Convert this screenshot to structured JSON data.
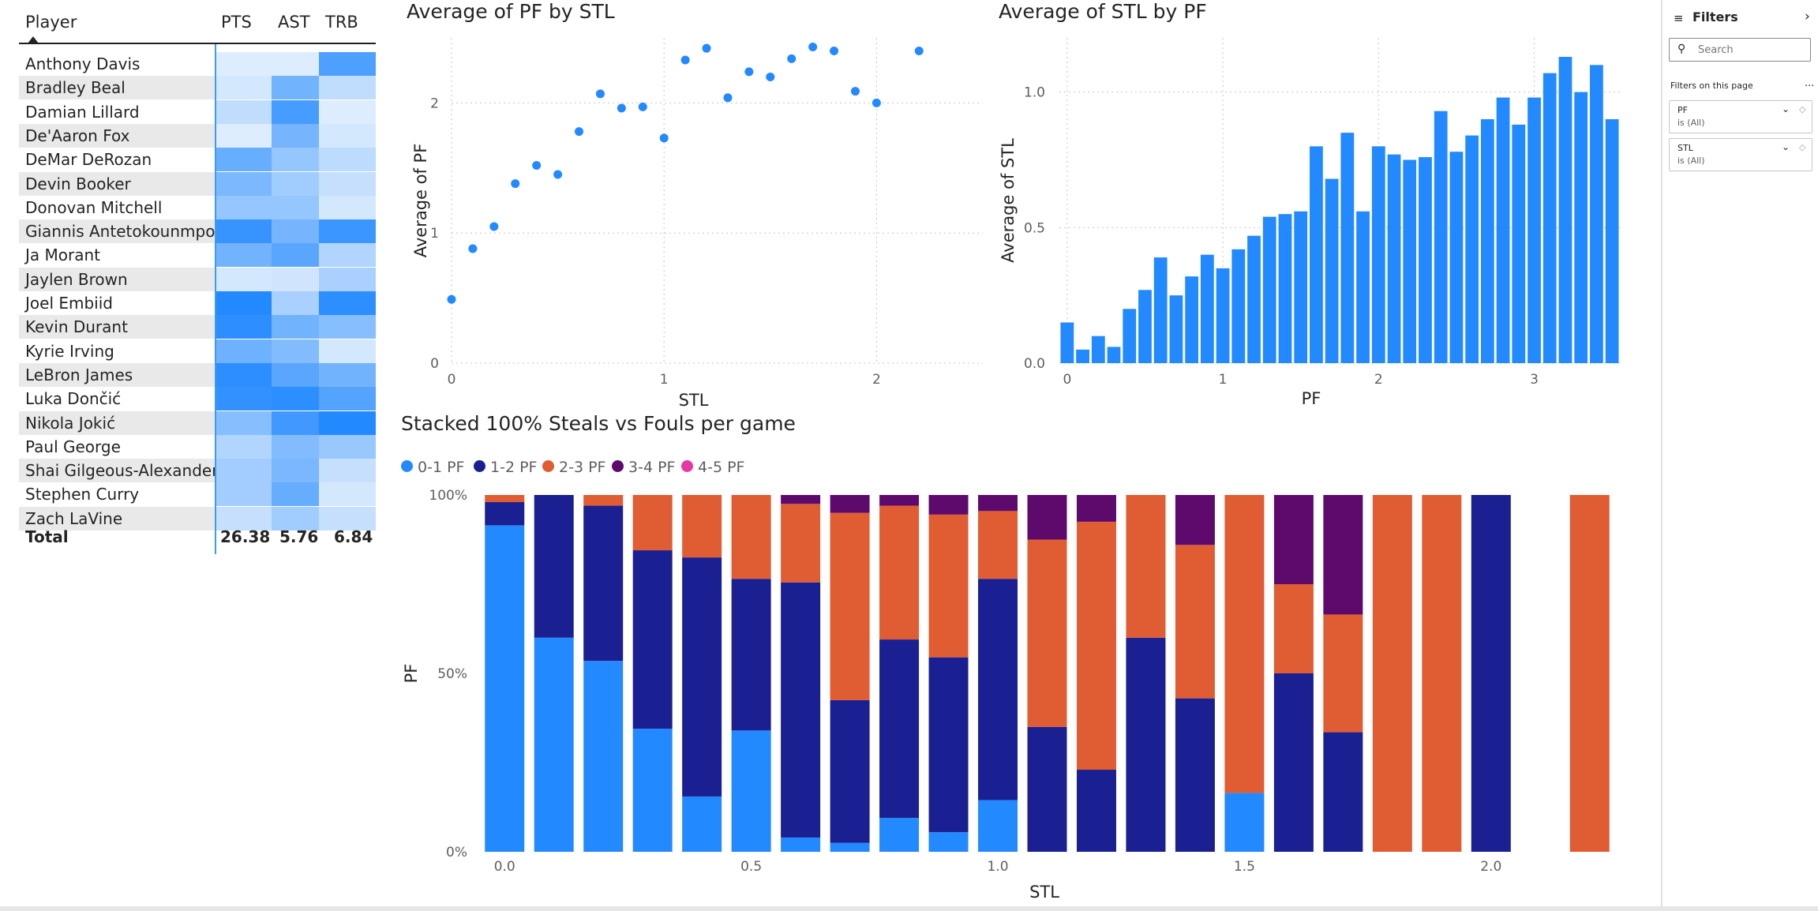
{
  "colors": {
    "accent": "#2389ff",
    "pf_0_1": "#2389ff",
    "pf_1_2": "#1a1f91",
    "pf_2_3": "#e05c33",
    "pf_3_4": "#5e0a6d",
    "pf_4_5": "#e438a7",
    "heat_max": "#2389ff",
    "heat_min": "#e8f2fd"
  },
  "table": {
    "headers": {
      "player": "Player",
      "pts": "PTS",
      "ast": "AST",
      "trb": "TRB"
    },
    "rows": [
      {
        "player": "Anthony Davis",
        "pts_level": 0.05,
        "ast_level": 0.05,
        "trb_level": 0.78
      },
      {
        "player": "Bradley Beal",
        "pts_level": 0.1,
        "ast_level": 0.6,
        "trb_level": 0.2
      },
      {
        "player": "Damian Lillard",
        "pts_level": 0.2,
        "ast_level": 0.82,
        "trb_level": 0.05
      },
      {
        "player": "De'Aaron Fox",
        "pts_level": 0.05,
        "ast_level": 0.58,
        "trb_level": 0.1
      },
      {
        "player": "DeMar DeRozan",
        "pts_level": 0.65,
        "ast_level": 0.42,
        "trb_level": 0.22
      },
      {
        "player": "Devin Booker",
        "pts_level": 0.55,
        "ast_level": 0.36,
        "trb_level": 0.18
      },
      {
        "player": "Donovan Mitchell",
        "pts_level": 0.42,
        "ast_level": 0.42,
        "trb_level": 0.1
      },
      {
        "player": "Giannis Antetokounmpo",
        "pts_level": 0.9,
        "ast_level": 0.58,
        "trb_level": 0.88
      },
      {
        "player": "Ja Morant",
        "pts_level": 0.6,
        "ast_level": 0.72,
        "trb_level": 0.28
      },
      {
        "player": "Jaylen Brown",
        "pts_level": 0.1,
        "ast_level": 0.12,
        "trb_level": 0.32
      },
      {
        "player": "Joel Embiid",
        "pts_level": 1.0,
        "ast_level": 0.32,
        "trb_level": 0.95
      },
      {
        "player": "Kevin Durant",
        "pts_level": 0.95,
        "ast_level": 0.6,
        "trb_level": 0.5
      },
      {
        "player": "Kyrie Irving",
        "pts_level": 0.62,
        "ast_level": 0.52,
        "trb_level": 0.1
      },
      {
        "player": "LeBron James",
        "pts_level": 0.95,
        "ast_level": 0.72,
        "trb_level": 0.6
      },
      {
        "player": "Luka Dončić",
        "pts_level": 0.92,
        "ast_level": 0.95,
        "trb_level": 0.75
      },
      {
        "player": "Nikola Jokić",
        "pts_level": 0.5,
        "ast_level": 0.85,
        "trb_level": 1.0
      },
      {
        "player": "Paul George",
        "pts_level": 0.28,
        "ast_level": 0.52,
        "trb_level": 0.4
      },
      {
        "player": "Shai Gilgeous-Alexander",
        "pts_level": 0.35,
        "ast_level": 0.56,
        "trb_level": 0.18
      },
      {
        "player": "Stephen Curry",
        "pts_level": 0.35,
        "ast_level": 0.66,
        "trb_level": 0.1
      },
      {
        "player": "Zach LaVine",
        "pts_level": 0.18,
        "ast_level": 0.36,
        "trb_level": 0.18
      }
    ],
    "total": {
      "label": "Total",
      "pts": "26.38",
      "ast": "5.76",
      "trb": "6.84"
    }
  },
  "filters": {
    "title": "Filters",
    "search_placeholder": "Search",
    "section": "Filters on this page",
    "more": "...",
    "collapse_glyph": "›",
    "cards": [
      {
        "name": "PF",
        "value": "is (All)"
      },
      {
        "name": "STL",
        "value": "is (All)"
      }
    ]
  },
  "chart_data": [
    {
      "type": "scatter",
      "title": "Average of PF by STL",
      "xlabel": "STL",
      "ylabel": "Average of PF",
      "xlim": [
        0,
        2.5
      ],
      "ylim": [
        0,
        2.5
      ],
      "xticks": [
        0,
        1,
        2
      ],
      "yticks": [
        0,
        1,
        2
      ],
      "points": [
        {
          "x": 0.0,
          "y": 0.49
        },
        {
          "x": 0.1,
          "y": 0.88
        },
        {
          "x": 0.2,
          "y": 1.05
        },
        {
          "x": 0.3,
          "y": 1.38
        },
        {
          "x": 0.4,
          "y": 1.52
        },
        {
          "x": 0.5,
          "y": 1.45
        },
        {
          "x": 0.6,
          "y": 1.78
        },
        {
          "x": 0.7,
          "y": 2.07
        },
        {
          "x": 0.8,
          "y": 1.96
        },
        {
          "x": 0.9,
          "y": 1.97
        },
        {
          "x": 1.0,
          "y": 1.73
        },
        {
          "x": 1.1,
          "y": 2.33
        },
        {
          "x": 1.2,
          "y": 2.42
        },
        {
          "x": 1.3,
          "y": 2.04
        },
        {
          "x": 1.4,
          "y": 2.24
        },
        {
          "x": 1.5,
          "y": 2.2
        },
        {
          "x": 1.6,
          "y": 2.34
        },
        {
          "x": 1.7,
          "y": 2.43
        },
        {
          "x": 1.8,
          "y": 2.4
        },
        {
          "x": 1.9,
          "y": 2.09
        },
        {
          "x": 2.0,
          "y": 2.0
        },
        {
          "x": 2.2,
          "y": 2.4
        }
      ]
    },
    {
      "type": "bar",
      "title": "Average of STL by PF",
      "xlabel": "PF",
      "ylabel": "Average of STL",
      "xlim": [
        -0.05,
        3.55
      ],
      "ylim": [
        0,
        1.2
      ],
      "xticks": [
        0,
        1,
        2,
        3
      ],
      "yticks": [
        0.0,
        0.5,
        1.0
      ],
      "ytick_labels": [
        "0.0",
        "0.5",
        "1.0"
      ],
      "bar_width": 0.085,
      "x": [
        0.0,
        0.1,
        0.2,
        0.3,
        0.4,
        0.5,
        0.6,
        0.7,
        0.8,
        0.9,
        1.0,
        1.1,
        1.2,
        1.3,
        1.4,
        1.5,
        1.6,
        1.7,
        1.8,
        1.9,
        2.0,
        2.1,
        2.2,
        2.3,
        2.4,
        2.5,
        2.6,
        2.7,
        2.8,
        2.9,
        3.0,
        3.1,
        3.2,
        3.3,
        3.4,
        3.5
      ],
      "values": [
        0.15,
        0.05,
        0.1,
        0.06,
        0.2,
        0.27,
        0.39,
        0.25,
        0.32,
        0.4,
        0.35,
        0.42,
        0.47,
        0.54,
        0.55,
        0.56,
        0.8,
        0.68,
        0.85,
        0.56,
        0.8,
        0.77,
        0.75,
        0.76,
        0.93,
        0.78,
        0.84,
        0.9,
        0.98,
        0.88,
        0.98,
        1.07,
        1.13,
        1.0,
        1.1,
        0.9
      ]
    },
    {
      "type": "bar",
      "stacked": "100%",
      "title": "Stacked 100% Steals vs Fouls per game",
      "xlabel": "STL",
      "ylabel": "PF",
      "yticks": [
        "0%",
        "50%",
        "100%"
      ],
      "xticks": [
        0.0,
        0.5,
        1.0,
        1.5,
        2.0
      ],
      "xtick_labels": [
        "0.0",
        "0.5",
        "1.0",
        "1.5",
        "2.0"
      ],
      "xlim": [
        -0.05,
        2.25
      ],
      "bar_width": 0.08,
      "categories": [
        0.0,
        0.1,
        0.2,
        0.3,
        0.4,
        0.5,
        0.6,
        0.7,
        0.8,
        0.9,
        1.0,
        1.1,
        1.2,
        1.3,
        1.4,
        1.5,
        1.6,
        1.7,
        1.8,
        1.9,
        2.0,
        2.1,
        2.2
      ],
      "series": [
        {
          "name": "0-1 PF",
          "values": [
            91.5,
            60,
            53.5,
            34.5,
            15.5,
            34,
            4,
            2.5,
            9.5,
            5.5,
            14.5,
            0,
            0,
            0,
            0,
            16.5,
            0,
            0,
            0,
            0,
            0,
            0,
            0
          ]
        },
        {
          "name": "1-2 PF",
          "values": [
            6.5,
            40,
            43.5,
            50,
            67,
            42.5,
            71.5,
            40,
            50,
            49,
            62,
            35,
            23,
            60,
            43,
            0,
            50,
            33.5,
            0,
            0,
            100,
            0,
            0
          ]
        },
        {
          "name": "2-3 PF",
          "values": [
            2,
            0,
            3,
            15.5,
            17.5,
            23.5,
            22,
            52.5,
            37.5,
            40,
            19,
            52.5,
            69.5,
            40,
            43,
            83.5,
            25,
            33,
            100,
            100,
            0,
            0,
            100
          ]
        },
        {
          "name": "3-4 PF",
          "values": [
            0,
            0,
            0,
            0,
            0,
            0,
            2.5,
            5,
            3,
            5.5,
            4.5,
            12.5,
            7.5,
            0,
            14,
            0,
            25,
            33.5,
            0,
            0,
            0,
            0,
            0
          ]
        },
        {
          "name": "4-5 PF",
          "values": [
            0,
            0,
            0,
            0,
            0,
            0,
            0,
            0,
            0,
            0,
            0,
            0,
            0,
            0,
            0,
            0,
            0,
            0,
            0,
            0,
            0,
            0,
            0
          ]
        }
      ]
    }
  ]
}
